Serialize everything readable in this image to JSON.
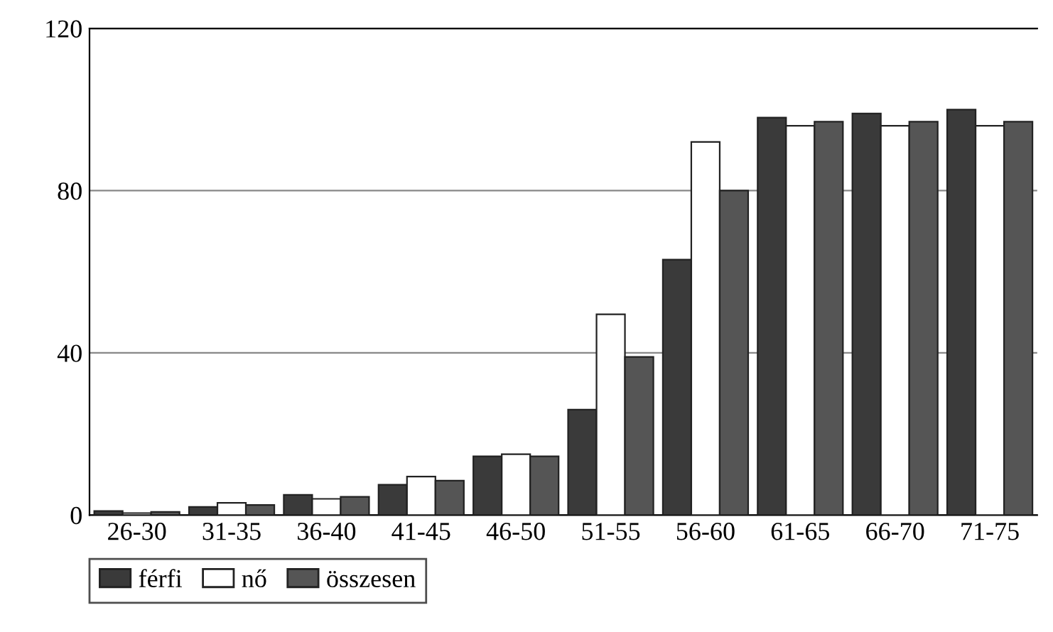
{
  "chart_data": {
    "type": "bar",
    "categories": [
      "26-30",
      "31-35",
      "36-40",
      "41-45",
      "46-50",
      "51-55",
      "56-60",
      "61-65",
      "66-70",
      "71-75"
    ],
    "series": [
      {
        "name": "férfi",
        "color": "#3a3a3a",
        "values": [
          1,
          2,
          5,
          7.5,
          14.5,
          26,
          63,
          98,
          99,
          100
        ]
      },
      {
        "name": "nő",
        "color": "#ffffff",
        "values": [
          0.5,
          3,
          4,
          9.5,
          15,
          49.5,
          92,
          96,
          96,
          96
        ]
      },
      {
        "name": "összesen",
        "color": "#555555",
        "values": [
          0.8,
          2.5,
          4.5,
          8.5,
          14.5,
          39,
          80,
          97,
          97,
          97
        ]
      }
    ],
    "ylim": [
      0,
      120
    ],
    "yticks": [
      0,
      40,
      80,
      120
    ],
    "grid": "y",
    "legend": "bottom left"
  }
}
